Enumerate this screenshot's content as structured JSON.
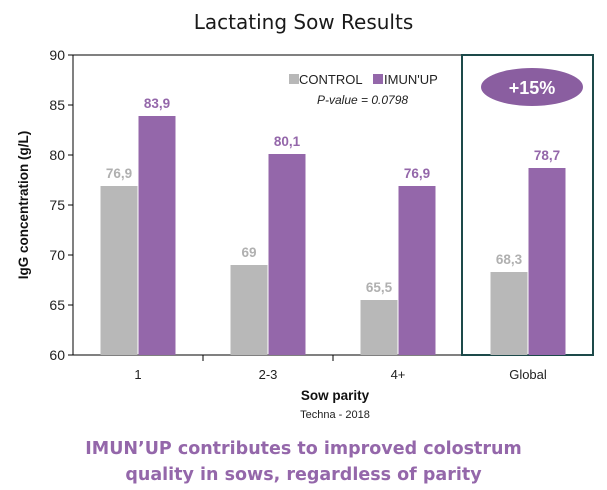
{
  "chart_data": {
    "type": "bar",
    "title": "Lactating Sow Results",
    "xlabel": "Sow parity",
    "ylabel": "IgG concentration (g/L)",
    "ylim": [
      60,
      90
    ],
    "yticks": [
      60,
      65,
      70,
      75,
      80,
      85,
      90
    ],
    "categories": [
      "1",
      "2-3",
      "4+",
      "Global"
    ],
    "series": [
      {
        "name": "CONTROL",
        "color": "#b8b8b8",
        "values": [
          76.9,
          69,
          65.5,
          68.3
        ],
        "labels": [
          "76,9",
          "69",
          "65,5",
          "68,3"
        ]
      },
      {
        "name": "IMUN'UP",
        "color": "#9467aa",
        "values": [
          83.9,
          80.1,
          76.9,
          78.7
        ],
        "labels": [
          "83,9",
          "80,1",
          "76,9",
          "78,7"
        ]
      }
    ],
    "legend_position": "top-right",
    "annotation_pvalue": "P-value = 0.0798",
    "badge": "+15%",
    "source": "Techna - 2018"
  },
  "caption": {
    "line1": "IMUN’UP contributes to improved colostrum",
    "line2": "quality in sows, regardless of parity"
  }
}
